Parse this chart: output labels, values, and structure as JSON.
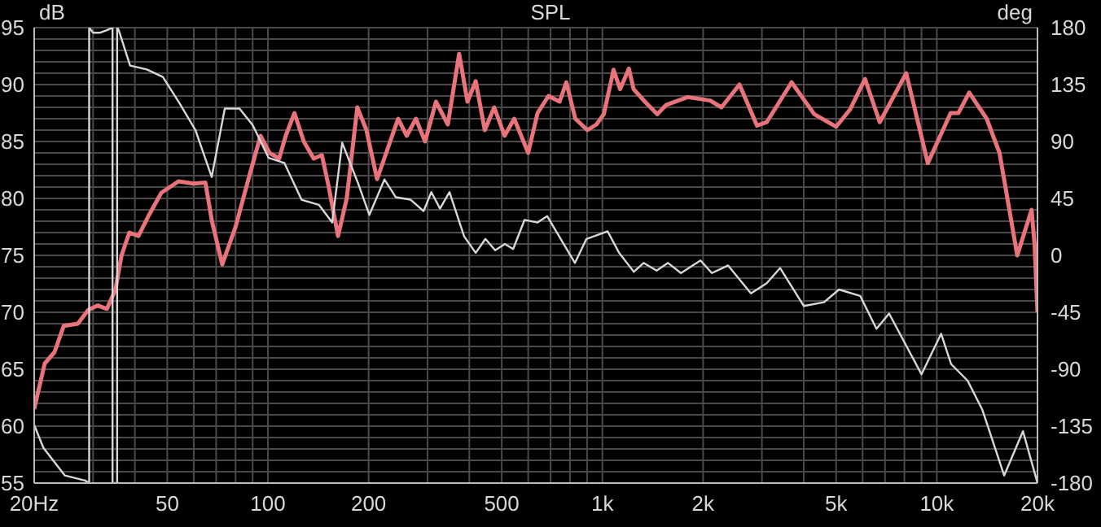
{
  "chart_data": {
    "type": "line",
    "title": "SPL",
    "ylabel": "dB",
    "y2label": "deg",
    "log": "x",
    "grid": true,
    "marker": "none",
    "xlim": [
      20,
      20000
    ],
    "xticks": [
      {
        "value": 20,
        "label": "20Hz"
      },
      {
        "value": 30,
        "label": null
      },
      {
        "value": 40,
        "label": null
      },
      50,
      {
        "value": 60,
        "label": null
      },
      {
        "value": 70,
        "label": null
      },
      {
        "value": 80,
        "label": null
      },
      {
        "value": 90,
        "label": null
      },
      100,
      200,
      {
        "value": 300,
        "label": null
      },
      {
        "value": 400,
        "label": null
      },
      500,
      {
        "value": 600,
        "label": null
      },
      {
        "value": 700,
        "label": null
      },
      {
        "value": 800,
        "label": null
      },
      {
        "value": 900,
        "label": null
      },
      {
        "value": 1000,
        "label": "1k"
      },
      {
        "value": 2000,
        "label": "2k"
      },
      {
        "value": 3000,
        "label": null
      },
      {
        "value": 4000,
        "label": null
      },
      {
        "value": 5000,
        "label": "5k"
      },
      {
        "value": 6000,
        "label": null
      },
      {
        "value": 7000,
        "label": null
      },
      {
        "value": 8000,
        "label": null
      },
      {
        "value": 9000,
        "label": null
      },
      {
        "value": 10000,
        "label": "10k"
      },
      {
        "value": 20000,
        "label": "20k"
      }
    ],
    "ylim": [
      55,
      95
    ],
    "yticks": [
      55,
      {
        "value": 56,
        "label": null
      },
      {
        "value": 57,
        "label": null
      },
      {
        "value": 58,
        "label": null
      },
      {
        "value": 59,
        "label": null
      },
      60,
      {
        "value": 61,
        "label": null
      },
      {
        "value": 62,
        "label": null
      },
      {
        "value": 63,
        "label": null
      },
      {
        "value": 64,
        "label": null
      },
      65,
      {
        "value": 66,
        "label": null
      },
      {
        "value": 67,
        "label": null
      },
      {
        "value": 68,
        "label": null
      },
      {
        "value": 69,
        "label": null
      },
      70,
      {
        "value": 71,
        "label": null
      },
      {
        "value": 72,
        "label": null
      },
      {
        "value": 73,
        "label": null
      },
      {
        "value": 74,
        "label": null
      },
      75,
      {
        "value": 76,
        "label": null
      },
      {
        "value": 77,
        "label": null
      },
      {
        "value": 78,
        "label": null
      },
      {
        "value": 79,
        "label": null
      },
      80,
      {
        "value": 81,
        "label": null
      },
      {
        "value": 82,
        "label": null
      },
      {
        "value": 83,
        "label": null
      },
      {
        "value": 84,
        "label": null
      },
      85,
      {
        "value": 86,
        "label": null
      },
      {
        "value": 87,
        "label": null
      },
      {
        "value": 88,
        "label": null
      },
      {
        "value": 89,
        "label": null
      },
      90,
      {
        "value": 91,
        "label": null
      },
      {
        "value": 92,
        "label": null
      },
      {
        "value": 93,
        "label": null
      },
      {
        "value": 94,
        "label": null
      },
      95
    ],
    "y2lim": [
      -180,
      180
    ],
    "y2ticks": [
      -180,
      -135,
      -90,
      -45,
      0,
      45,
      90,
      135,
      180
    ],
    "series": [
      {
        "color": "#e8737a",
        "x": [
          20,
          21.5,
          23,
          24.5,
          27,
          29,
          31,
          33,
          35,
          36.5,
          38.5,
          41,
          44,
          48,
          54,
          60,
          65,
          68,
          73,
          80,
          88,
          95,
          101,
          108,
          113,
          120,
          128,
          137,
          145,
          152,
          162,
          172,
          185,
          197,
          212,
          232,
          245,
          260,
          277,
          295,
          318,
          345,
          373,
          395,
          418,
          445,
          475,
          510,
          545,
          600,
          640,
          690,
          745,
          780,
          830,
          902,
          960,
          1010,
          1080,
          1130,
          1200,
          1240,
          1340,
          1460,
          1550,
          1800,
          2100,
          2270,
          2570,
          2900,
          3100,
          3680,
          4300,
          5000,
          5500,
          6100,
          6750,
          8100,
          9400,
          11000,
          11600,
          12500,
          14100,
          15400,
          17400,
          19200,
          19600,
          20000
        ],
        "values": [
          61.5,
          65.5,
          66.5,
          68.8,
          69,
          70.2,
          70.6,
          70.3,
          72,
          75,
          77,
          76.7,
          78.5,
          80.5,
          81.5,
          81.3,
          81.4,
          78,
          74.2,
          77.5,
          82,
          85.5,
          84,
          83.5,
          85.5,
          87.5,
          85,
          83.5,
          83.8,
          81,
          76.7,
          80,
          88,
          86,
          81.7,
          85,
          87,
          85.5,
          87,
          85,
          88.5,
          86.5,
          92.7,
          88.5,
          90.3,
          86,
          88,
          85.5,
          87,
          84,
          87.5,
          89,
          88.5,
          90.2,
          87,
          86,
          86.5,
          87.4,
          91.3,
          89.6,
          91.4,
          89.6,
          88.5,
          87.4,
          88.2,
          88.9,
          88.6,
          88,
          90,
          86.4,
          86.7,
          90.2,
          87.4,
          86.3,
          87.8,
          90.5,
          86.7,
          91,
          83.1,
          87.5,
          87.5,
          89.3,
          87,
          84,
          75,
          79,
          76,
          70
        ]
      },
      {
        "color": "#d8d8d8",
        "axis": "y2",
        "x": [
          20,
          21.3,
          24.7,
          28.4,
          29.2,
          29.2,
          30,
          31.5,
          33,
          34.3,
          34.3,
          35.4,
          35.4,
          35.8,
          38.7,
          43.4,
          48.5,
          54.2,
          60.7,
          67.9,
          74.3,
          82.2,
          90,
          100.5,
          112,
          126,
          142,
          155.6,
          166.7,
          186,
          201,
          223,
          241,
          267,
          292,
          308,
          327,
          349,
          386,
          418,
          447,
          478,
          511,
          541,
          585,
          640,
          684,
          828,
          896,
          1037,
          1122,
          1242,
          1328,
          1453,
          1571,
          1718,
          1965,
          2125,
          2377,
          2781,
          3100,
          3400,
          4000,
          4600,
          5100,
          5900,
          6600,
          7200,
          9000,
          10300,
          11040,
          12360,
          13680,
          15900,
          18100,
          20000
        ],
        "values": [
          -134,
          -152,
          -174,
          -178,
          -180,
          180,
          176,
          176,
          178,
          180,
          -180,
          -180,
          180,
          178,
          150,
          147,
          141,
          121,
          99,
          62,
          116,
          116,
          103,
          77,
          73,
          44,
          40,
          26,
          89,
          57,
          32,
          60,
          46,
          44,
          35,
          50,
          37,
          50,
          15,
          2,
          13,
          4,
          9,
          5,
          28,
          26,
          31,
          -6,
          13,
          19,
          2,
          -13,
          -6,
          -12,
          -6,
          -14,
          -4,
          -14,
          -8,
          -30,
          -22,
          -10,
          -40,
          -37,
          -27,
          -32,
          -58,
          -46,
          -94,
          -62,
          -86,
          -99,
          -122,
          -174,
          -139,
          -180
        ]
      }
    ]
  }
}
